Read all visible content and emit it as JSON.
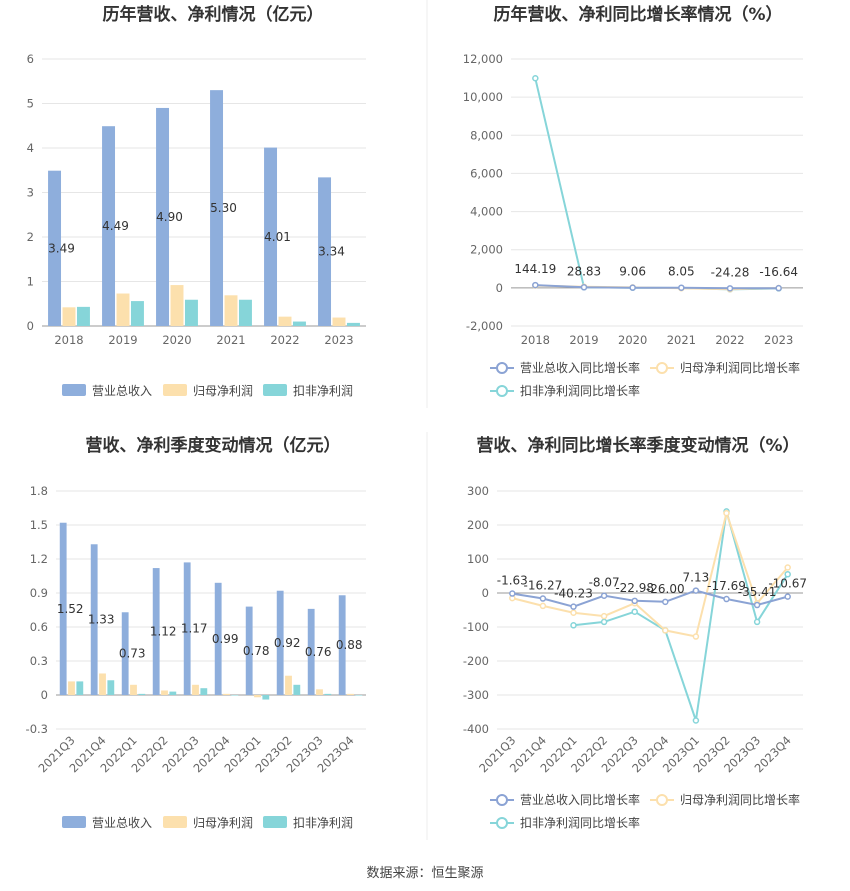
{
  "source_label": "数据来源：恒生聚源",
  "colors": {
    "revenue": "#8eaedc",
    "net_profit": "#fce0ad",
    "deducted_profit": "#86d5d9",
    "rev_growth": "#8ba3d4",
    "np_growth": "#fce0ad",
    "dp_growth": "#86d5d9",
    "grid": "#e6e6e6",
    "axis": "#999999",
    "divider": "#eeeeee"
  },
  "chart_data": [
    {
      "id": "annual_amount",
      "type": "bar",
      "title": "历年营收、净利情况（亿元）",
      "categories": [
        "2018",
        "2019",
        "2020",
        "2021",
        "2022",
        "2023"
      ],
      "yticks": [
        "0",
        "1",
        "2",
        "3",
        "4",
        "5",
        "6"
      ],
      "ylim": [
        0,
        6
      ],
      "series": [
        {
          "name": "营业总收入",
          "values": [
            3.49,
            4.49,
            4.9,
            5.3,
            4.01,
            3.34
          ],
          "labels": [
            "3.49",
            "4.49",
            "4.90",
            "5.30",
            "4.01",
            "3.34"
          ]
        },
        {
          "name": "归母净利润",
          "values": [
            0.42,
            0.73,
            0.92,
            0.69,
            0.21,
            0.19
          ]
        },
        {
          "name": "扣非净利润",
          "values": [
            0.43,
            0.56,
            0.59,
            0.59,
            0.1,
            0.07
          ]
        }
      ],
      "legend": "bottom"
    },
    {
      "id": "annual_growth",
      "type": "line",
      "title": "历年营收、净利同比增长率情况（%）",
      "categories": [
        "2018",
        "2019",
        "2020",
        "2021",
        "2022",
        "2023"
      ],
      "yticks": [
        "-2,000",
        "0",
        "2,000",
        "4,000",
        "6,000",
        "8,000",
        "10,000",
        "12,000"
      ],
      "ylim": [
        -2000,
        12000
      ],
      "series": [
        {
          "name": "营业总收入同比增长率",
          "values": [
            144.19,
            28.83,
            9.06,
            8.05,
            -24.28,
            -16.64
          ],
          "labels": [
            "144.19",
            "28.83",
            "9.06",
            "8.05",
            "-24.28",
            "-16.64"
          ]
        },
        {
          "name": "归母净利润同比增长率",
          "values": [
            120,
            60,
            25,
            -20,
            -70,
            -10
          ]
        },
        {
          "name": "扣非净利润同比增长率",
          "values": [
            10990,
            30,
            5,
            -5,
            -80,
            -30
          ]
        }
      ],
      "legend": "bottom"
    },
    {
      "id": "quarterly_amount",
      "type": "bar",
      "title": "营收、净利季度变动情况（亿元）",
      "categories": [
        "2021Q3",
        "2021Q4",
        "2022Q1",
        "2022Q2",
        "2022Q3",
        "2022Q4",
        "2023Q1",
        "2023Q2",
        "2023Q3",
        "2023Q4"
      ],
      "yticks": [
        "-0.3",
        "0",
        "0.3",
        "0.6",
        "0.9",
        "1.2",
        "1.5",
        "1.8"
      ],
      "ylim": [
        -0.3,
        1.8
      ],
      "series": [
        {
          "name": "营业总收入",
          "values": [
            1.52,
            1.33,
            0.73,
            1.12,
            1.17,
            0.99,
            0.78,
            0.92,
            0.76,
            0.88
          ],
          "labels": [
            "1.52",
            "1.33",
            "0.73",
            "1.12",
            "1.17",
            "0.99",
            "0.78",
            "0.92",
            "0.76",
            "0.88"
          ]
        },
        {
          "name": "归母净利润",
          "values": [
            0.12,
            0.19,
            0.09,
            0.04,
            0.09,
            0.01,
            -0.02,
            0.17,
            0.05,
            0.01
          ]
        },
        {
          "name": "扣非净利润",
          "values": [
            0.12,
            0.13,
            0.01,
            0.03,
            0.06,
            0.0,
            -0.04,
            0.09,
            0.01,
            0.0
          ]
        }
      ],
      "legend": "bottom"
    },
    {
      "id": "quarterly_growth",
      "type": "line",
      "title": "营收、净利同比增长率季度变动情况（%）",
      "categories": [
        "2021Q3",
        "2021Q4",
        "2022Q1",
        "2022Q2",
        "2022Q3",
        "2022Q4",
        "2023Q1",
        "2023Q2",
        "2023Q3",
        "2023Q4"
      ],
      "yticks": [
        "-400",
        "-300",
        "-200",
        "-100",
        "0",
        "100",
        "200",
        "300"
      ],
      "ylim": [
        -400,
        300
      ],
      "series": [
        {
          "name": "营业总收入同比增长率",
          "values": [
            -1.63,
            -16.27,
            -40.23,
            -8.07,
            -22.98,
            -26.0,
            7.13,
            -17.69,
            -35.41,
            -10.67
          ],
          "labels": [
            "-1.63",
            "-16.27",
            "-40.23",
            "-8.07",
            "-22.98",
            "-26.00",
            "7.13",
            "-17.69",
            "-35.41",
            "-10.67"
          ]
        },
        {
          "name": "归母净利润同比增长率",
          "values": [
            -15,
            -38,
            -58,
            -68,
            -30,
            -110,
            -128,
            235,
            -30,
            75
          ]
        },
        {
          "name": "扣非净利润同比增长率",
          "values": [
            null,
            null,
            -95,
            -85,
            -55,
            -110,
            -375,
            240,
            -85,
            55
          ]
        }
      ],
      "legend": "bottom"
    }
  ]
}
